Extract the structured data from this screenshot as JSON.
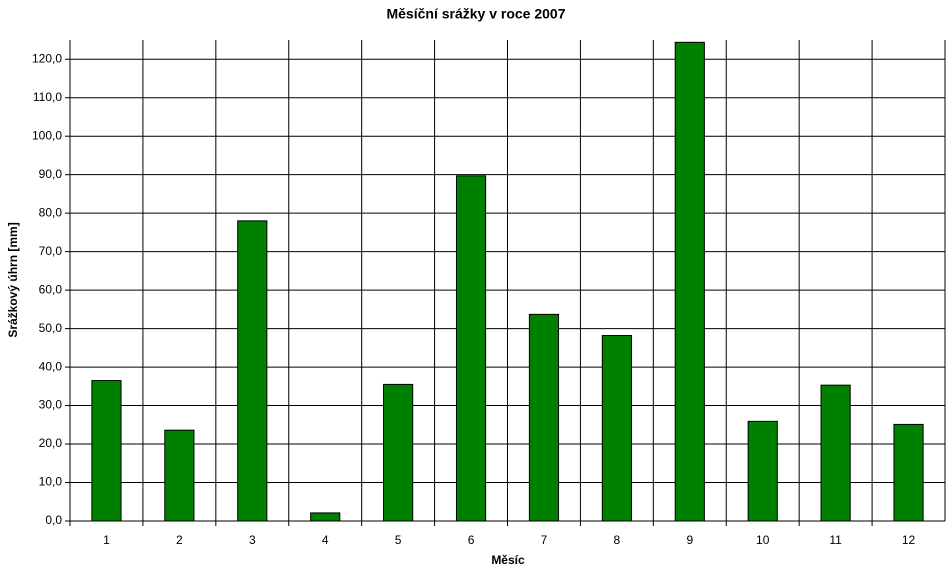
{
  "chart_data": {
    "type": "bar",
    "title": "Měsíční srážky v roce 2007",
    "xlabel": "Měsíc",
    "ylabel": "Srážkový úhrn [mm]",
    "categories": [
      "1",
      "2",
      "3",
      "4",
      "5",
      "6",
      "7",
      "8",
      "9",
      "10",
      "11",
      "12"
    ],
    "values": [
      36.5,
      23.6,
      78.0,
      2.1,
      35.5,
      89.7,
      53.7,
      48.2,
      124.4,
      25.9,
      35.3,
      25.1
    ],
    "color": "#008000",
    "ylim": [
      0,
      125
    ],
    "yticks": [
      {
        "value": 0,
        "label": "0,0"
      },
      {
        "value": 10,
        "label": "10,0"
      },
      {
        "value": 20,
        "label": "20,0"
      },
      {
        "value": 30,
        "label": "30,0"
      },
      {
        "value": 40,
        "label": "40,0"
      },
      {
        "value": 50,
        "label": "50,0"
      },
      {
        "value": 60,
        "label": "60,0"
      },
      {
        "value": 70,
        "label": "70,0"
      },
      {
        "value": 80,
        "label": "80,0"
      },
      {
        "value": 90,
        "label": "90,0"
      },
      {
        "value": 100,
        "label": "100,0"
      },
      {
        "value": 110,
        "label": "110,0"
      },
      {
        "value": 120,
        "label": "120,0"
      }
    ],
    "grid": true
  }
}
